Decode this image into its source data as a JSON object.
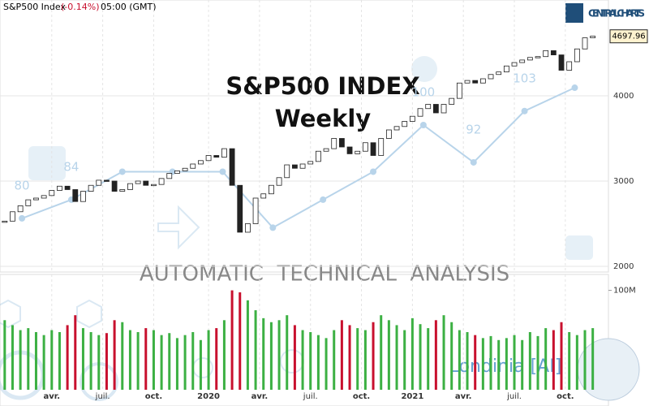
{
  "header": {
    "instrument": "S&P500 Index",
    "change": "(-0.14%)",
    "time": "05:00 (GMT)",
    "brand": "CENTRAL CHARTS",
    "watermark": "AUTOMATIC  TECHNICAL  ANALYSIS",
    "assistant": "Londinia [AI]"
  },
  "chart_data": {
    "type": "candlestick",
    "title": "S&P500 INDEX",
    "subtitle": "Weekly",
    "closes": [
      2530,
      2640,
      2710,
      2780,
      2800,
      2830,
      2890,
      2940,
      2900,
      2760,
      2880,
      2950,
      3010,
      3000,
      2880,
      2900,
      2970,
      3000,
      2950,
      2960,
      3030,
      3090,
      3120,
      3150,
      3200,
      3240,
      3300,
      3280,
      3380,
      2950,
      2400,
      2500,
      2800,
      2850,
      2950,
      3040,
      3190,
      3150,
      3200,
      3230,
      3350,
      3380,
      3500,
      3400,
      3320,
      3350,
      3450,
      3300,
      3500,
      3600,
      3640,
      3700,
      3760,
      3850,
      3900,
      3800,
      3900,
      3970,
      4150,
      4180,
      4150,
      4200,
      4250,
      4280,
      4350,
      4390,
      4420,
      4450,
      4460,
      4530,
      4480,
      4300,
      4400,
      4550,
      4680,
      4700
    ],
    "up_color": "#ffffff",
    "down_color": "#222222",
    "ylim": [
      1933,
      5124
    ],
    "yticks": [
      2000,
      3000,
      4000
    ],
    "grid": true,
    "last_price": 4697.96,
    "xlim": [
      -0.6,
      77
    ],
    "xticks": [
      {
        "value": 6,
        "label": "avr."
      },
      {
        "value": 12.5,
        "label": "juil."
      },
      {
        "value": 19,
        "label": "oct."
      },
      {
        "value": 26,
        "label": "2020"
      },
      {
        "value": 32.5,
        "label": "avr."
      },
      {
        "value": 39,
        "label": "juil."
      },
      {
        "value": 45.5,
        "label": "oct."
      },
      {
        "value": 52,
        "label": "2021"
      },
      {
        "value": 58.5,
        "label": "avr."
      },
      {
        "value": 65,
        "label": "juil."
      },
      {
        "value": 71.5,
        "label": "oct."
      }
    ],
    "volume": {
      "values": [
        70,
        65,
        60,
        62,
        58,
        55,
        60,
        58,
        65,
        75,
        62,
        58,
        55,
        57,
        70,
        68,
        60,
        58,
        62,
        60,
        55,
        57,
        52,
        55,
        58,
        50,
        60,
        62,
        70,
        100,
        98,
        90,
        80,
        72,
        68,
        70,
        75,
        65,
        60,
        58,
        55,
        52,
        60,
        70,
        65,
        62,
        60,
        68,
        75,
        70,
        65,
        60,
        72,
        66,
        62,
        70,
        75,
        68,
        60,
        58,
        55,
        52,
        54,
        50,
        52,
        55,
        50,
        58,
        54,
        62,
        60,
        68,
        58,
        55,
        60,
        62
      ],
      "up_color": "#3cb043",
      "down_color": "#c8102e",
      "ylim": [
        0,
        116
      ],
      "yticks": [
        {
          "value": 100,
          "label": "100M"
        }
      ]
    },
    "sentiment": {
      "color": "#b8d4ea",
      "x": [
        2.2,
        8.5,
        15,
        21.4,
        27.8,
        34.2,
        40.6,
        47,
        53.4,
        59.8,
        66.3,
        72.7
      ],
      "values": [
        80,
        84,
        90,
        90,
        90,
        78,
        84,
        90,
        100,
        92,
        103,
        108
      ],
      "value_labels": [
        "80",
        "84",
        null,
        null,
        null,
        null,
        null,
        null,
        "100",
        "92",
        "103",
        null
      ],
      "ylim": [
        68.5,
        126.8
      ]
    }
  }
}
